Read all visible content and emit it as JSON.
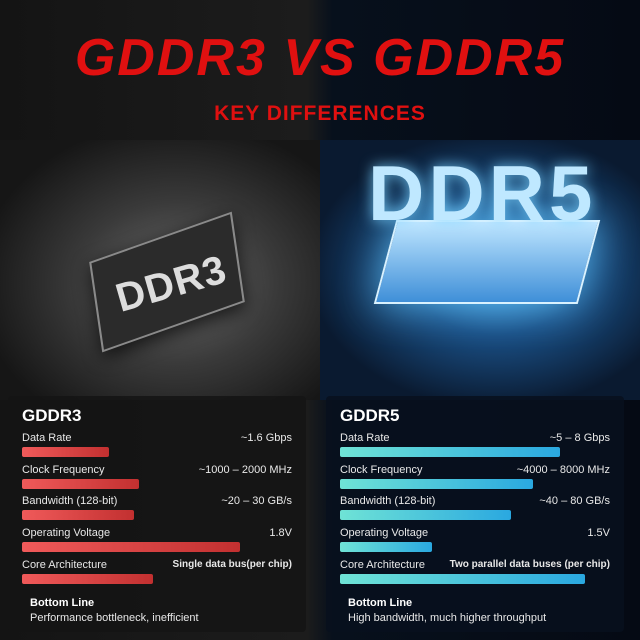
{
  "header": {
    "title": "GDDR3 VS GDDR5",
    "subtitle": "KEY DIFFERENCES"
  },
  "image": {
    "left_chip_label": "DDR3",
    "right_chip_label": "DDR5"
  },
  "colors": {
    "title": "#e01010",
    "left_bar": "#e04848",
    "right_bar": "#3ec8e0"
  },
  "panels": [
    {
      "title": "GDDR3",
      "rows": [
        {
          "label": "Data Rate",
          "value": "~1.6 Gbps",
          "fill": 0.32
        },
        {
          "label": "Clock Frequency",
          "value": "~1000 – 2000 MHz",
          "fill": 0.43
        },
        {
          "label": "Bandwidth (128-bit)",
          "value": "~20 – 30 GB/s",
          "fill": 0.41
        },
        {
          "label": "Operating Voltage",
          "value": "1.8V",
          "fill": 0.8
        },
        {
          "label": "Core Architecture",
          "value": "Single data bus(per chip)",
          "fill": 0.48
        }
      ],
      "bottom_label": "Bottom Line",
      "bottom_text": "Performance bottleneck, inefficient"
    },
    {
      "title": "GDDR5",
      "rows": [
        {
          "label": "Data Rate",
          "value": "~5 – 8 Gbps",
          "fill": 0.81
        },
        {
          "label": "Clock Frequency",
          "value": "~4000 – 8000 MHz",
          "fill": 0.71
        },
        {
          "label": "Bandwidth (128-bit)",
          "value": "~40 – 80 GB/s",
          "fill": 0.63
        },
        {
          "label": "Operating Voltage",
          "value": "1.5V",
          "fill": 0.34
        },
        {
          "label": "Core Architecture",
          "value": "Two parallel data buses (per chip)",
          "fill": 0.9
        }
      ],
      "bottom_label": "Bottom Line",
      "bottom_text": "High bandwidth, much higher throughput"
    }
  ]
}
